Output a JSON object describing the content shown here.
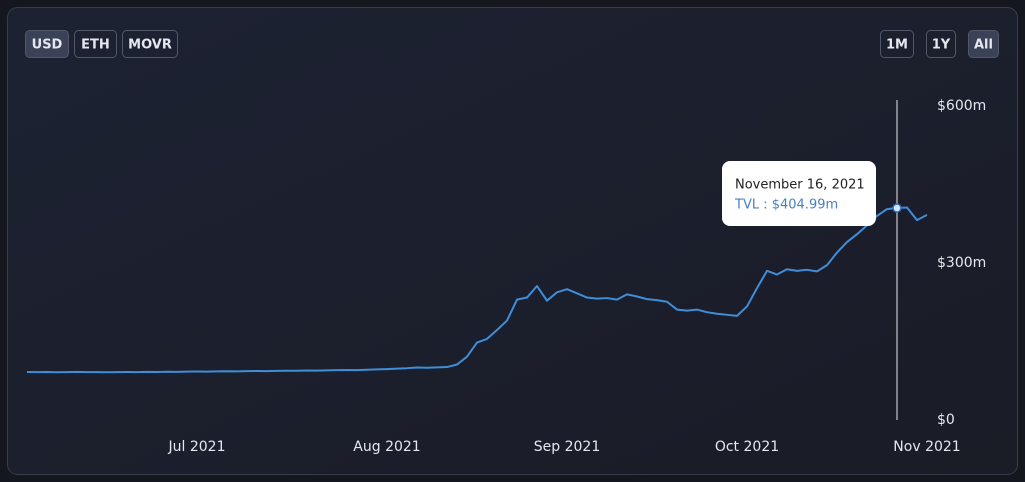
{
  "controls": {
    "currency": [
      "USD",
      "ETH",
      "MOVR"
    ],
    "range": [
      "1M",
      "1Y",
      "All"
    ]
  },
  "chart_data": {
    "type": "line",
    "color": "#3f8ed8",
    "grid": false,
    "categories": [
      null,
      null,
      null,
      null,
      null,
      null,
      null,
      null,
      null,
      null,
      null,
      null,
      null,
      null,
      null,
      null,
      null,
      "Jul 2021",
      null,
      null,
      null,
      null,
      null,
      null,
      null,
      null,
      null,
      null,
      null,
      null,
      null,
      null,
      null,
      null,
      null,
      null,
      "Aug 2021",
      null,
      null,
      null,
      null,
      null,
      null,
      null,
      null,
      null,
      null,
      null,
      null,
      null,
      null,
      null,
      null,
      null,
      "Sep 2021",
      null,
      null,
      null,
      null,
      null,
      null,
      null,
      null,
      null,
      null,
      null,
      null,
      null,
      null,
      null,
      null,
      null,
      "Oct 2021",
      null,
      null,
      null,
      null,
      null,
      null,
      null,
      null,
      null,
      null,
      null,
      null,
      null,
      null,
      null,
      null,
      null,
      "Nov 2021"
    ],
    "values": [
      91.7,
      91.4,
      91.7,
      91.2,
      91.5,
      91.9,
      91.4,
      91.6,
      91.3,
      91.5,
      91.7,
      91.6,
      92.0,
      91.8,
      92.2,
      92.0,
      92.4,
      92.6,
      92.4,
      92.8,
      93.1,
      92.9,
      93.3,
      93.6,
      93.5,
      93.9,
      94.2,
      94.0,
      94.5,
      94.3,
      94.9,
      95.2,
      95.6,
      95.4,
      96.1,
      96.8,
      97.3,
      98.1,
      99.0,
      100.4,
      99.8,
      100.6,
      101.2,
      106,
      121,
      148,
      155,
      172,
      190,
      230,
      234,
      256,
      228,
      244,
      250,
      242,
      234,
      232,
      233,
      230,
      240,
      236,
      231,
      229,
      226,
      211,
      209,
      211,
      206,
      203,
      201,
      199,
      217,
      252,
      285,
      278,
      288,
      285,
      287,
      284,
      296,
      320,
      340,
      355,
      372,
      390,
      403,
      404.99,
      406,
      382,
      392
    ],
    "ylim": [
      0,
      600
    ],
    "yticks": [
      {
        "value": 0,
        "label": "$0"
      },
      {
        "value": 300,
        "label": "$300m"
      },
      {
        "value": 600,
        "label": "$600m"
      }
    ],
    "tooltip": {
      "date": "November 16, 2021",
      "label": "TVL : $404.99m",
      "value": 404.99
    }
  }
}
